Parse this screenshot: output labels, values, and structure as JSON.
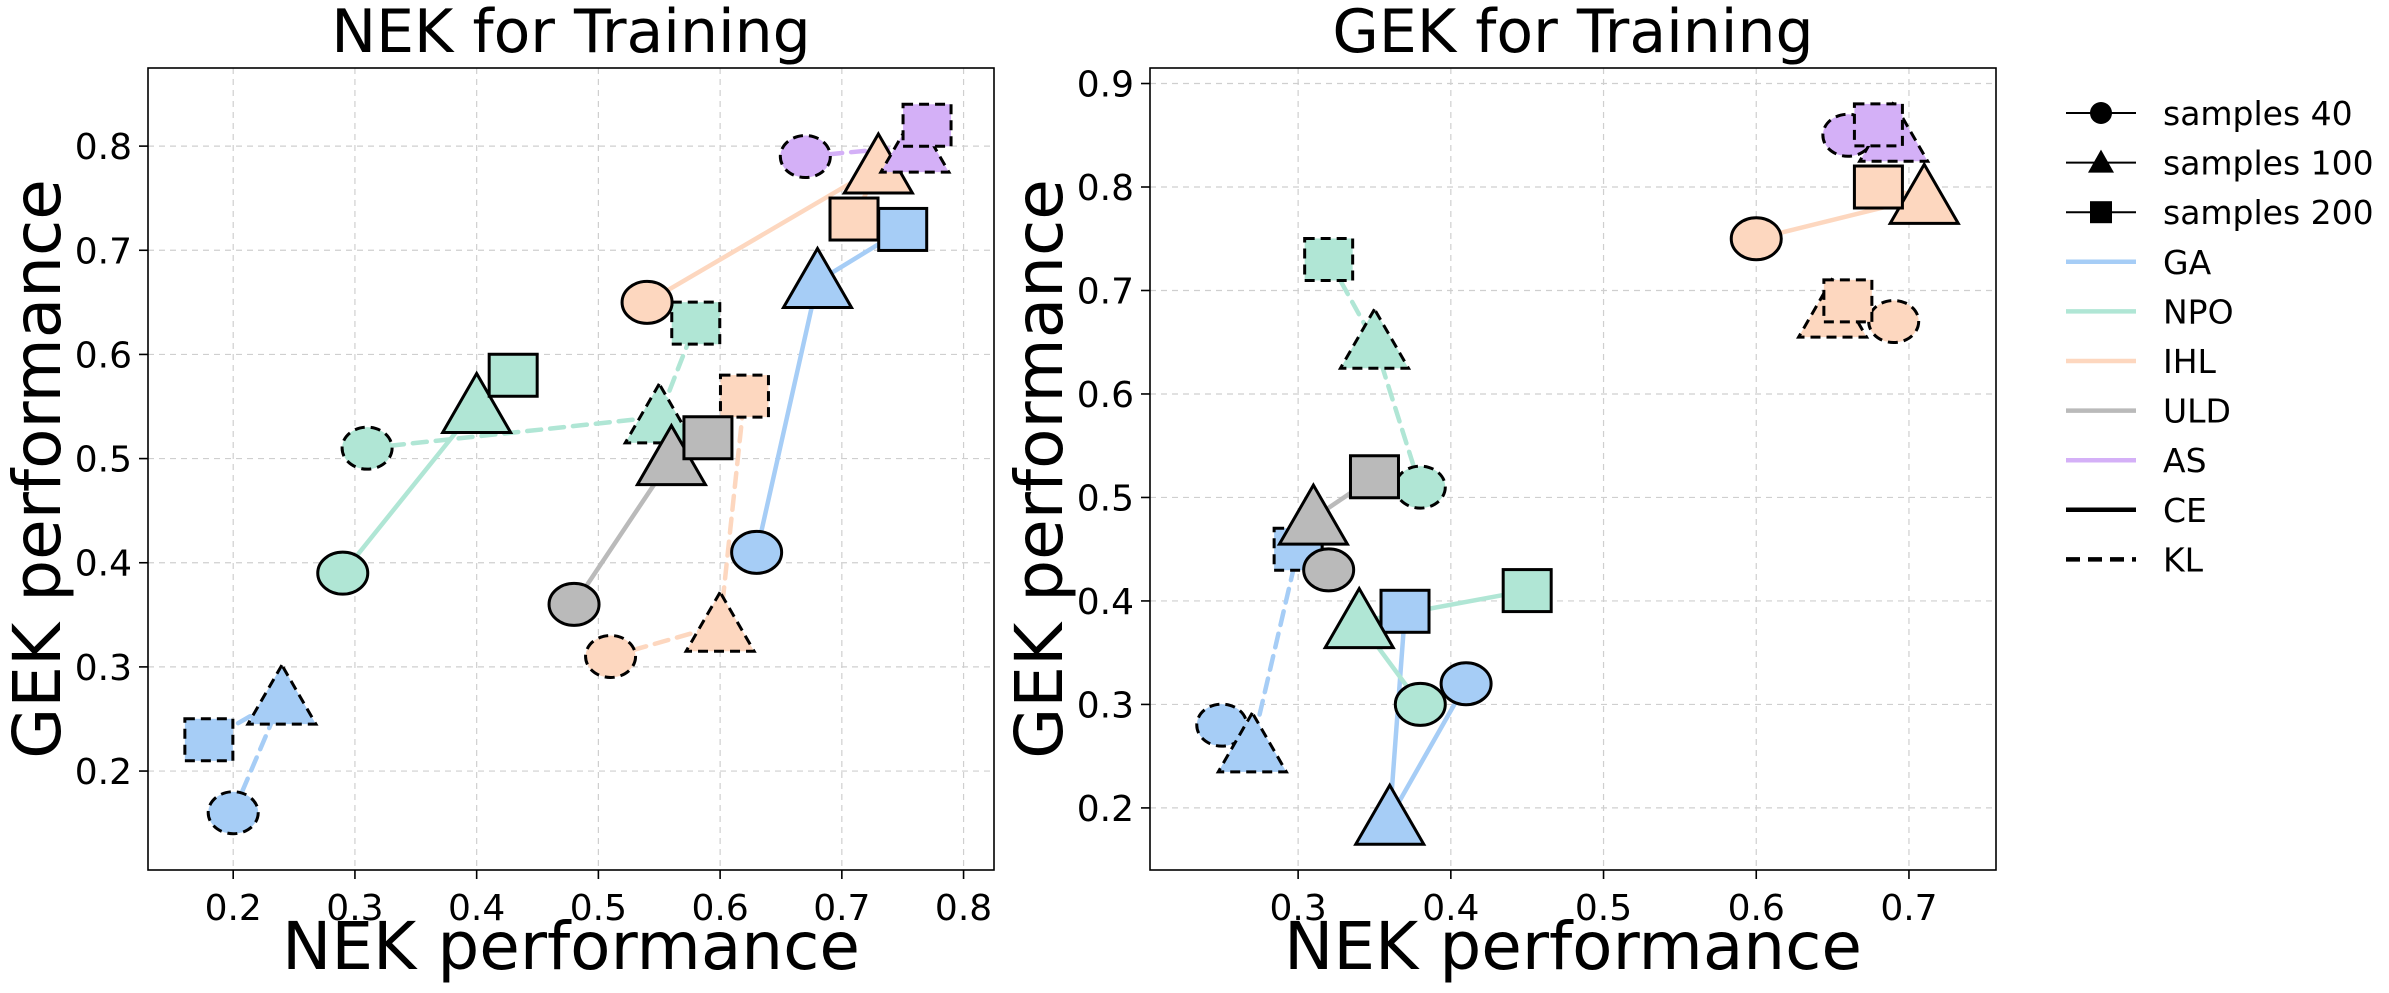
{
  "chart_data": [
    {
      "type": "scatter",
      "title": "NEK for Training",
      "xlabel": "NEK performance",
      "ylabel": "GEK performance",
      "xlim": [
        0.13,
        0.825
      ],
      "ylim": [
        0.105,
        0.875
      ],
      "xticks": [
        "0.2",
        "0.3",
        "0.4",
        "0.5",
        "0.6",
        "0.7",
        "0.8"
      ],
      "yticks": [
        "0.2",
        "0.3",
        "0.4",
        "0.5",
        "0.6",
        "0.7",
        "0.8"
      ],
      "grid": true,
      "series": [
        {
          "name": "GA",
          "loss": "CE",
          "color": "#a6cdf6",
          "points": [
            {
              "samples": 40,
              "x": 0.63,
              "y": 0.41
            },
            {
              "samples": 100,
              "x": 0.68,
              "y": 0.67
            },
            {
              "samples": 200,
              "x": 0.75,
              "y": 0.72
            }
          ]
        },
        {
          "name": "GA",
          "loss": "KL",
          "color": "#a6cdf6",
          "points": [
            {
              "samples": 40,
              "x": 0.2,
              "y": 0.16
            },
            {
              "samples": 100,
              "x": 0.24,
              "y": 0.27
            },
            {
              "samples": 200,
              "x": 0.18,
              "y": 0.23
            }
          ]
        },
        {
          "name": "NPO",
          "loss": "CE",
          "color": "#b0e6d5",
          "points": [
            {
              "samples": 40,
              "x": 0.29,
              "y": 0.39
            },
            {
              "samples": 100,
              "x": 0.4,
              "y": 0.55
            },
            {
              "samples": 200,
              "x": 0.43,
              "y": 0.58
            }
          ]
        },
        {
          "name": "NPO",
          "loss": "KL",
          "color": "#b0e6d5",
          "points": [
            {
              "samples": 40,
              "x": 0.31,
              "y": 0.51
            },
            {
              "samples": 100,
              "x": 0.55,
              "y": 0.54
            },
            {
              "samples": 200,
              "x": 0.58,
              "y": 0.63
            }
          ]
        },
        {
          "name": "IHL",
          "loss": "CE",
          "color": "#fdd7bf",
          "points": [
            {
              "samples": 40,
              "x": 0.54,
              "y": 0.65
            },
            {
              "samples": 100,
              "x": 0.73,
              "y": 0.78
            },
            {
              "samples": 200,
              "x": 0.71,
              "y": 0.73
            }
          ]
        },
        {
          "name": "IHL",
          "loss": "KL",
          "color": "#fdd7bf",
          "points": [
            {
              "samples": 40,
              "x": 0.51,
              "y": 0.31
            },
            {
              "samples": 100,
              "x": 0.6,
              "y": 0.34
            },
            {
              "samples": 200,
              "x": 0.62,
              "y": 0.56
            }
          ]
        },
        {
          "name": "ULD",
          "loss": "CE",
          "color": "#bababa",
          "points": [
            {
              "samples": 40,
              "x": 0.48,
              "y": 0.36
            },
            {
              "samples": 100,
              "x": 0.56,
              "y": 0.5
            },
            {
              "samples": 200,
              "x": 0.59,
              "y": 0.52
            }
          ]
        },
        {
          "name": "AS",
          "loss": "KL",
          "color": "#d4b0f7",
          "points": [
            {
              "samples": 40,
              "x": 0.67,
              "y": 0.79
            },
            {
              "samples": 100,
              "x": 0.76,
              "y": 0.8
            },
            {
              "samples": 200,
              "x": 0.77,
              "y": 0.82
            }
          ]
        }
      ]
    },
    {
      "type": "scatter",
      "title": "GEK for Training",
      "xlabel": "NEK performance",
      "ylabel": "GEK performance",
      "xlim": [
        0.203,
        0.757
      ],
      "ylim": [
        0.14,
        0.915
      ],
      "xticks": [
        "0.3",
        "0.4",
        "0.5",
        "0.6",
        "0.7"
      ],
      "yticks": [
        "0.2",
        "0.3",
        "0.4",
        "0.5",
        "0.6",
        "0.7",
        "0.8",
        "0.9"
      ],
      "grid": true,
      "series": [
        {
          "name": "GA",
          "loss": "CE",
          "color": "#a6cdf6",
          "points": [
            {
              "samples": 40,
              "x": 0.41,
              "y": 0.32
            },
            {
              "samples": 100,
              "x": 0.36,
              "y": 0.19
            },
            {
              "samples": 200,
              "x": 0.37,
              "y": 0.39
            }
          ]
        },
        {
          "name": "GA",
          "loss": "KL",
          "color": "#a6cdf6",
          "points": [
            {
              "samples": 40,
              "x": 0.25,
              "y": 0.28
            },
            {
              "samples": 100,
              "x": 0.27,
              "y": 0.26
            },
            {
              "samples": 200,
              "x": 0.3,
              "y": 0.45
            }
          ]
        },
        {
          "name": "NPO",
          "loss": "CE",
          "color": "#b0e6d5",
          "points": [
            {
              "samples": 40,
              "x": 0.38,
              "y": 0.3
            },
            {
              "samples": 100,
              "x": 0.34,
              "y": 0.38
            },
            {
              "samples": 200,
              "x": 0.45,
              "y": 0.41
            }
          ]
        },
        {
          "name": "NPO",
          "loss": "KL",
          "color": "#b0e6d5",
          "points": [
            {
              "samples": 40,
              "x": 0.38,
              "y": 0.51
            },
            {
              "samples": 100,
              "x": 0.35,
              "y": 0.65
            },
            {
              "samples": 200,
              "x": 0.32,
              "y": 0.73
            }
          ]
        },
        {
          "name": "IHL",
          "loss": "CE",
          "color": "#fdd7bf",
          "points": [
            {
              "samples": 40,
              "x": 0.6,
              "y": 0.75
            },
            {
              "samples": 100,
              "x": 0.71,
              "y": 0.79
            },
            {
              "samples": 200,
              "x": 0.68,
              "y": 0.8
            }
          ]
        },
        {
          "name": "IHL",
          "loss": "KL",
          "color": "#fdd7bf",
          "points": [
            {
              "samples": 40,
              "x": 0.69,
              "y": 0.67
            },
            {
              "samples": 100,
              "x": 0.65,
              "y": 0.68
            },
            {
              "samples": 200,
              "x": 0.66,
              "y": 0.69
            }
          ]
        },
        {
          "name": "ULD",
          "loss": "CE",
          "color": "#bababa",
          "points": [
            {
              "samples": 40,
              "x": 0.32,
              "y": 0.43
            },
            {
              "samples": 100,
              "x": 0.31,
              "y": 0.48
            },
            {
              "samples": 200,
              "x": 0.35,
              "y": 0.52
            }
          ]
        },
        {
          "name": "AS",
          "loss": "KL",
          "color": "#d4b0f7",
          "points": [
            {
              "samples": 40,
              "x": 0.66,
              "y": 0.85
            },
            {
              "samples": 100,
              "x": 0.69,
              "y": 0.85
            },
            {
              "samples": 200,
              "x": 0.68,
              "y": 0.86
            }
          ]
        }
      ]
    }
  ],
  "legend": {
    "position": "right",
    "items": [
      {
        "label": "samples 40",
        "kind": "marker",
        "marker": "circle"
      },
      {
        "label": "samples 100",
        "kind": "marker",
        "marker": "triangle"
      },
      {
        "label": "samples 200",
        "kind": "marker",
        "marker": "square"
      },
      {
        "label": "GA",
        "kind": "line",
        "color": "#a6cdf6",
        "dash": "solid"
      },
      {
        "label": "NPO",
        "kind": "line",
        "color": "#b0e6d5",
        "dash": "solid"
      },
      {
        "label": "IHL",
        "kind": "line",
        "color": "#fdd7bf",
        "dash": "solid"
      },
      {
        "label": "ULD",
        "kind": "line",
        "color": "#bababa",
        "dash": "solid"
      },
      {
        "label": "AS",
        "kind": "line",
        "color": "#d4b0f7",
        "dash": "solid"
      },
      {
        "label": "CE",
        "kind": "line",
        "color": "#000000",
        "dash": "solid"
      },
      {
        "label": "KL",
        "kind": "line",
        "color": "#000000",
        "dash": "dashed"
      }
    ]
  }
}
